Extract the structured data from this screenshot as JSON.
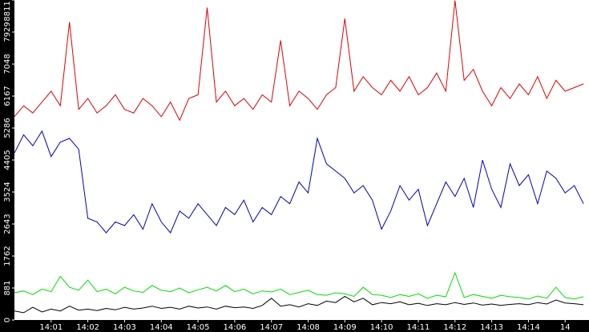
{
  "chart_data": {
    "type": "line",
    "x": [
      0,
      0.25,
      0.5,
      0.75,
      1,
      1.25,
      1.5,
      1.75,
      2,
      2.25,
      2.5,
      2.75,
      3,
      3.25,
      3.5,
      3.75,
      4,
      4.25,
      4.5,
      4.75,
      5,
      5.25,
      5.5,
      5.75,
      6,
      6.25,
      6.5,
      6.75,
      7,
      7.25,
      7.5,
      7.75,
      8,
      8.25,
      8.5,
      8.75,
      9,
      9.25,
      9.5,
      9.75,
      10,
      10.25,
      10.5,
      10.75,
      11,
      11.25,
      11.5,
      11.75,
      12,
      12.25,
      12.5,
      12.75,
      13,
      13.25,
      13.5,
      13.75,
      14,
      14.25,
      14.5,
      14.75,
      15,
      15.25,
      15.5
    ],
    "series": [
      {
        "color": "#e00000",
        "values": [
          5600,
          5900,
          5700,
          6000,
          6300,
          5900,
          8200,
          5800,
          6100,
          5700,
          5900,
          6200,
          5800,
          5700,
          6100,
          5900,
          5600,
          6000,
          5500,
          6100,
          6200,
          8600,
          6000,
          6300,
          5900,
          6100,
          5800,
          6200,
          6000,
          7700,
          5900,
          6300,
          6100,
          5800,
          6200,
          6400,
          8300,
          6300,
          6700,
          6400,
          6200,
          6600,
          6300,
          6700,
          6200,
          6400,
          6800,
          6300,
          8800,
          6600,
          6900,
          6300,
          5900,
          6400,
          6100,
          6500,
          6200,
          6700,
          6100,
          6600,
          6300,
          6400,
          6500
        ]
      },
      {
        "color": "#0000c0",
        "values": [
          4600,
          5100,
          4800,
          5200,
          4500,
          4900,
          5000,
          4700,
          2800,
          2700,
          2400,
          2700,
          2600,
          2900,
          2500,
          3200,
          2700,
          2400,
          3000,
          2800,
          3200,
          2900,
          2600,
          3100,
          2900,
          3300,
          2700,
          3100,
          2900,
          3400,
          3200,
          3800,
          3500,
          5000,
          4300,
          4100,
          3900,
          3500,
          3700,
          3300,
          2500,
          3000,
          3700,
          3300,
          3600,
          2600,
          3200,
          3800,
          3400,
          3900,
          3100,
          4400,
          3600,
          3100,
          4300,
          3700,
          4000,
          3200,
          4100,
          3900,
          3500,
          3700,
          3200
        ]
      },
      {
        "color": "#00e000",
        "values": [
          750,
          800,
          700,
          850,
          780,
          1200,
          900,
          820,
          1100,
          780,
          850,
          720,
          900,
          800,
          760,
          950,
          820,
          780,
          880,
          750,
          830,
          900,
          800,
          950,
          780,
          850,
          720,
          800,
          770,
          850,
          700,
          760,
          820,
          700,
          680,
          750,
          720,
          650,
          900,
          700,
          680,
          620,
          700,
          650,
          720,
          600,
          680,
          640,
          1300,
          620,
          700,
          650,
          600,
          680,
          640,
          620,
          580,
          660,
          600,
          900,
          620,
          580,
          640
        ]
      },
      {
        "color": "#000000",
        "values": [
          250,
          200,
          350,
          220,
          300,
          250,
          380,
          270,
          300,
          260,
          320,
          280,
          350,
          300,
          330,
          380,
          320,
          350,
          300,
          380,
          330,
          360,
          300,
          380,
          340,
          360,
          320,
          400,
          600,
          380,
          420,
          360,
          450,
          400,
          520,
          480,
          650,
          500,
          600,
          420,
          480,
          450,
          500,
          420,
          460,
          400,
          450,
          420,
          480,
          430,
          470,
          410,
          440,
          400,
          430,
          450,
          420,
          480,
          440,
          550,
          470,
          450,
          420
        ]
      }
    ],
    "xlim": [
      0,
      15.65
    ],
    "xticks": [
      {
        "value": 1,
        "label": "14:01"
      },
      {
        "value": 2,
        "label": "14:02"
      },
      {
        "value": 3,
        "label": "14:03"
      },
      {
        "value": 4,
        "label": "14:04"
      },
      {
        "value": 5,
        "label": "14:05"
      },
      {
        "value": 6,
        "label": "14:06"
      },
      {
        "value": 7,
        "label": "14:07"
      },
      {
        "value": 8,
        "label": "14:08"
      },
      {
        "value": 9,
        "label": "14:09"
      },
      {
        "value": 10,
        "label": "14:10"
      },
      {
        "value": 11,
        "label": "14:11"
      },
      {
        "value": 12,
        "label": "14:12"
      },
      {
        "value": 13,
        "label": "14:13"
      },
      {
        "value": 14,
        "label": "14:14"
      },
      {
        "value": 15,
        "label": "14"
      }
    ],
    "ylim": [
      0,
      8811
    ],
    "yticks": [
      0,
      881,
      1762,
      2643,
      3524,
      4405,
      5286,
      6167,
      7048,
      7929,
      8811
    ]
  }
}
